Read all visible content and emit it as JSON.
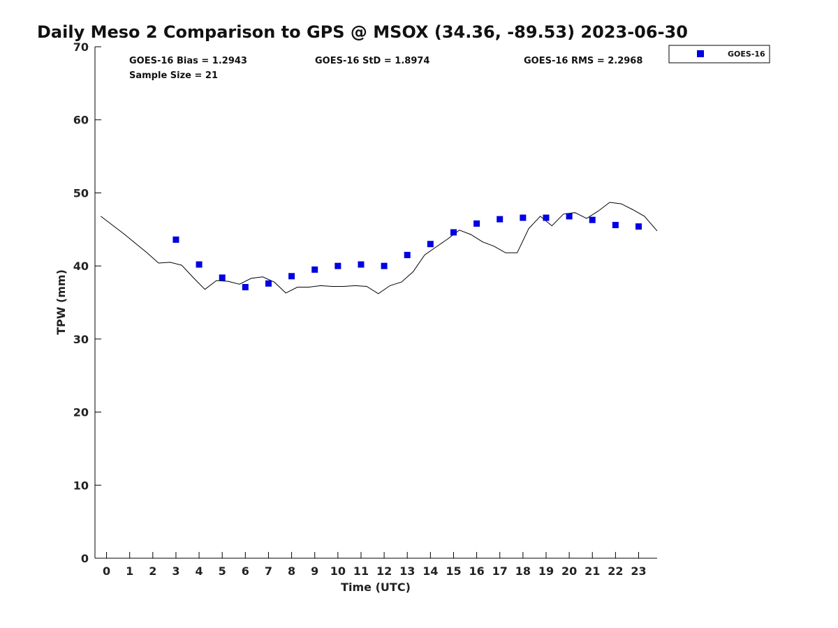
{
  "chart_data": {
    "type": "scatter",
    "title": "Daily Meso 2 Comparison to GPS @ MSOX (34.36, -89.53) 2023-06-30",
    "xlabel": "Time (UTC)",
    "ylabel": "TPW (mm)",
    "xlim": [
      -0.5,
      23.8
    ],
    "ylim": [
      0,
      70
    ],
    "x_ticks": [
      0,
      1,
      2,
      3,
      4,
      5,
      6,
      7,
      8,
      9,
      10,
      11,
      12,
      13,
      14,
      15,
      16,
      17,
      18,
      19,
      20,
      21,
      22,
      23
    ],
    "y_ticks": [
      0,
      10,
      20,
      30,
      40,
      50,
      60,
      70
    ],
    "grid": false,
    "legend_position": "outside top-right",
    "stats": {
      "bias": "GOES-16 Bias = 1.2943",
      "std": "GOES-16 StD = 1.8974",
      "rms": "GOES-16 RMS = 2.2968",
      "sample": "Sample Size = 21"
    },
    "series": [
      {
        "name": "GOES-16",
        "kind": "scatter",
        "marker": "square",
        "color": "#0000e0",
        "x": [
          3,
          4,
          5,
          6,
          7,
          8,
          9,
          10,
          11,
          12,
          13,
          14,
          15,
          16,
          17,
          18,
          19,
          20,
          21,
          22,
          23
        ],
        "y": [
          43.6,
          40.2,
          38.4,
          37.1,
          37.6,
          38.6,
          39.5,
          40.0,
          40.2,
          40.0,
          41.5,
          43.0,
          44.6,
          45.8,
          46.4,
          46.6,
          46.6,
          46.8,
          46.3,
          45.6,
          45.4
        ]
      },
      {
        "kind": "line",
        "color": "#000000",
        "x": [
          -0.25,
          0.25,
          0.75,
          1.25,
          1.75,
          2.25,
          2.75,
          3.25,
          3.75,
          4.25,
          4.75,
          5.25,
          5.75,
          6.25,
          6.75,
          7.25,
          7.75,
          8.25,
          8.75,
          9.25,
          9.75,
          10.25,
          10.75,
          11.25,
          11.75,
          12.25,
          12.75,
          13.25,
          13.75,
          14.25,
          14.75,
          15.25,
          15.75,
          16.25,
          16.75,
          17.25,
          17.75,
          18.25,
          18.75,
          19.25,
          19.75,
          20.25,
          20.75,
          21.25,
          21.75,
          22.25,
          22.75,
          23.25,
          23.8
        ],
        "y": [
          46.8,
          45.6,
          44.4,
          43.1,
          41.8,
          40.4,
          40.5,
          40.1,
          38.4,
          36.8,
          38.0,
          37.9,
          37.5,
          38.3,
          38.5,
          37.8,
          36.3,
          37.1,
          37.1,
          37.3,
          37.2,
          37.2,
          37.3,
          37.2,
          36.2,
          37.3,
          37.8,
          39.2,
          41.5,
          42.6,
          43.7,
          44.9,
          44.3,
          43.3,
          42.7,
          41.8,
          41.8,
          45.1,
          46.8,
          45.5,
          47.1,
          47.3,
          46.5,
          47.5,
          48.7,
          48.5,
          47.7,
          46.8,
          44.8
        ]
      }
    ]
  }
}
